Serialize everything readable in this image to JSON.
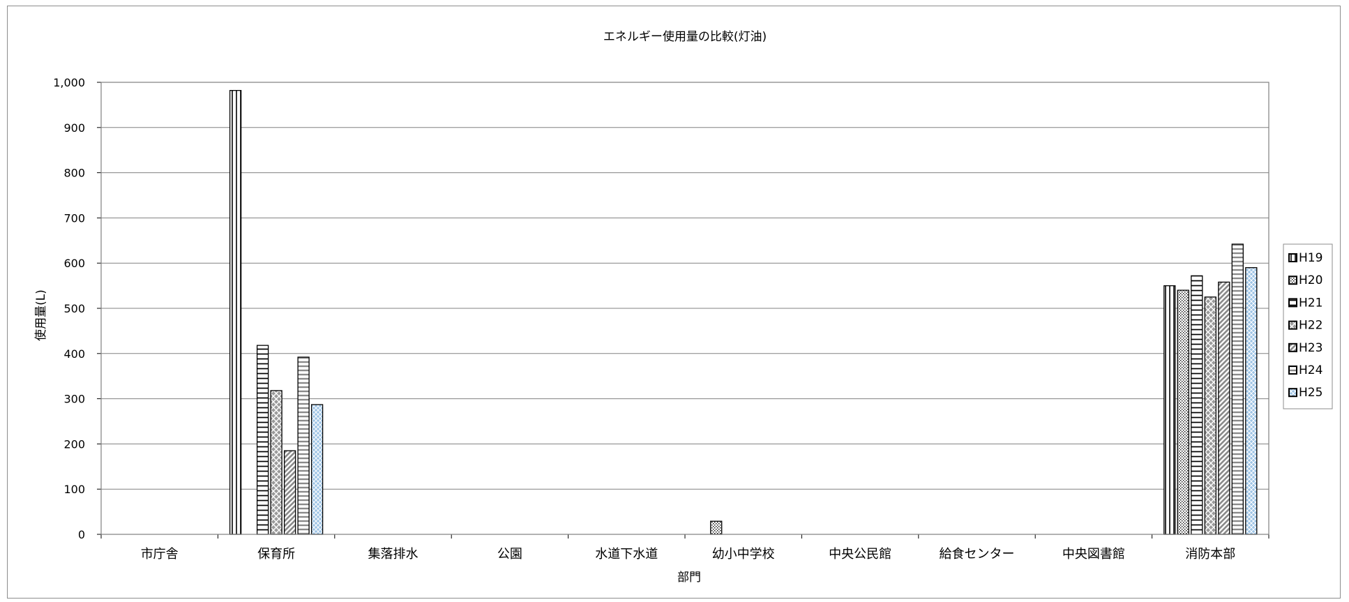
{
  "chart_data": {
    "type": "bar",
    "title": "エネルギー使用量の比較(灯油)",
    "xlabel": "部門",
    "ylabel": "使用量(L)",
    "ylim": [
      0,
      1000
    ],
    "yticks": [
      "0",
      "100",
      "200",
      "300",
      "400",
      "500",
      "600",
      "700",
      "800",
      "900",
      "1,000"
    ],
    "grid": true,
    "legend_position": "right",
    "categories": [
      "市庁舎",
      "保育所",
      "集落排水",
      "公園",
      "水道下水道",
      "幼小中学校",
      "中央公民館",
      "給食センター",
      "中央図書館",
      "消防本部"
    ],
    "series": [
      {
        "name": "H19",
        "values": [
          0,
          982,
          0,
          0,
          0,
          0,
          0,
          0,
          0,
          550
        ]
      },
      {
        "name": "H20",
        "values": [
          0,
          0,
          0,
          0,
          0,
          29,
          0,
          0,
          0,
          540
        ]
      },
      {
        "name": "H21",
        "values": [
          0,
          418,
          0,
          0,
          0,
          0,
          0,
          0,
          0,
          572
        ]
      },
      {
        "name": "H22",
        "values": [
          0,
          318,
          0,
          0,
          0,
          0,
          0,
          0,
          0,
          525
        ]
      },
      {
        "name": "H23",
        "values": [
          0,
          185,
          0,
          0,
          0,
          0,
          0,
          0,
          0,
          558
        ]
      },
      {
        "name": "H24",
        "values": [
          0,
          392,
          0,
          0,
          0,
          0,
          0,
          0,
          0,
          642
        ]
      },
      {
        "name": "H25",
        "values": [
          0,
          287,
          0,
          0,
          0,
          0,
          0,
          0,
          0,
          590
        ]
      }
    ]
  },
  "colors": {
    "bar_fill": "#ffffff",
    "bar_stroke": "#000000",
    "h25_fill": "#9cc3e5",
    "gridline": "#808080",
    "frame": "#8c8c8c"
  }
}
